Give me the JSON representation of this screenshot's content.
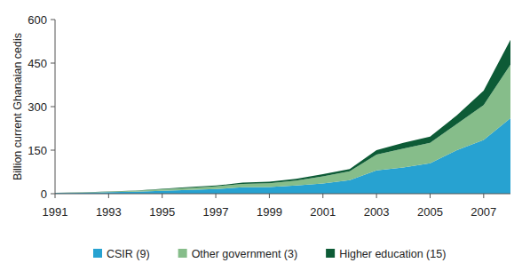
{
  "chart_data": {
    "type": "area",
    "stacked": true,
    "y_label": "Billion current Ghanaian cedis",
    "x": [
      1991,
      1992,
      1993,
      1994,
      1995,
      1996,
      1997,
      1998,
      1999,
      2000,
      2001,
      2002,
      2003,
      2004,
      2005,
      2006,
      2007,
      2008
    ],
    "series": [
      {
        "name": "CSIR (9)",
        "color": "#27a2d1",
        "values": [
          2,
          3,
          5,
          7,
          10,
          13,
          16,
          22,
          23,
          28,
          35,
          47,
          80,
          90,
          105,
          150,
          185,
          260
        ]
      },
      {
        "name": "Other government (3)",
        "color": "#86bd8a",
        "values": [
          0.5,
          1,
          2,
          3,
          5,
          7,
          9,
          12,
          13,
          17,
          25,
          30,
          55,
          65,
          70,
          90,
          120,
          185
        ]
      },
      {
        "name": "Higher education (15)",
        "color": "#0d5b36",
        "values": [
          0.5,
          0.5,
          1,
          1,
          2,
          3,
          3,
          4,
          5,
          6,
          7,
          8,
          15,
          20,
          22,
          30,
          50,
          85
        ]
      }
    ],
    "xlim": [
      1991,
      2008
    ],
    "xticks": [
      1991,
      1993,
      1995,
      1997,
      1999,
      2001,
      2003,
      2005,
      2007
    ],
    "ylim": [
      0,
      600
    ],
    "yticks": [
      0,
      150,
      300,
      450,
      600
    ],
    "grid": false,
    "legend": "bottom"
  }
}
